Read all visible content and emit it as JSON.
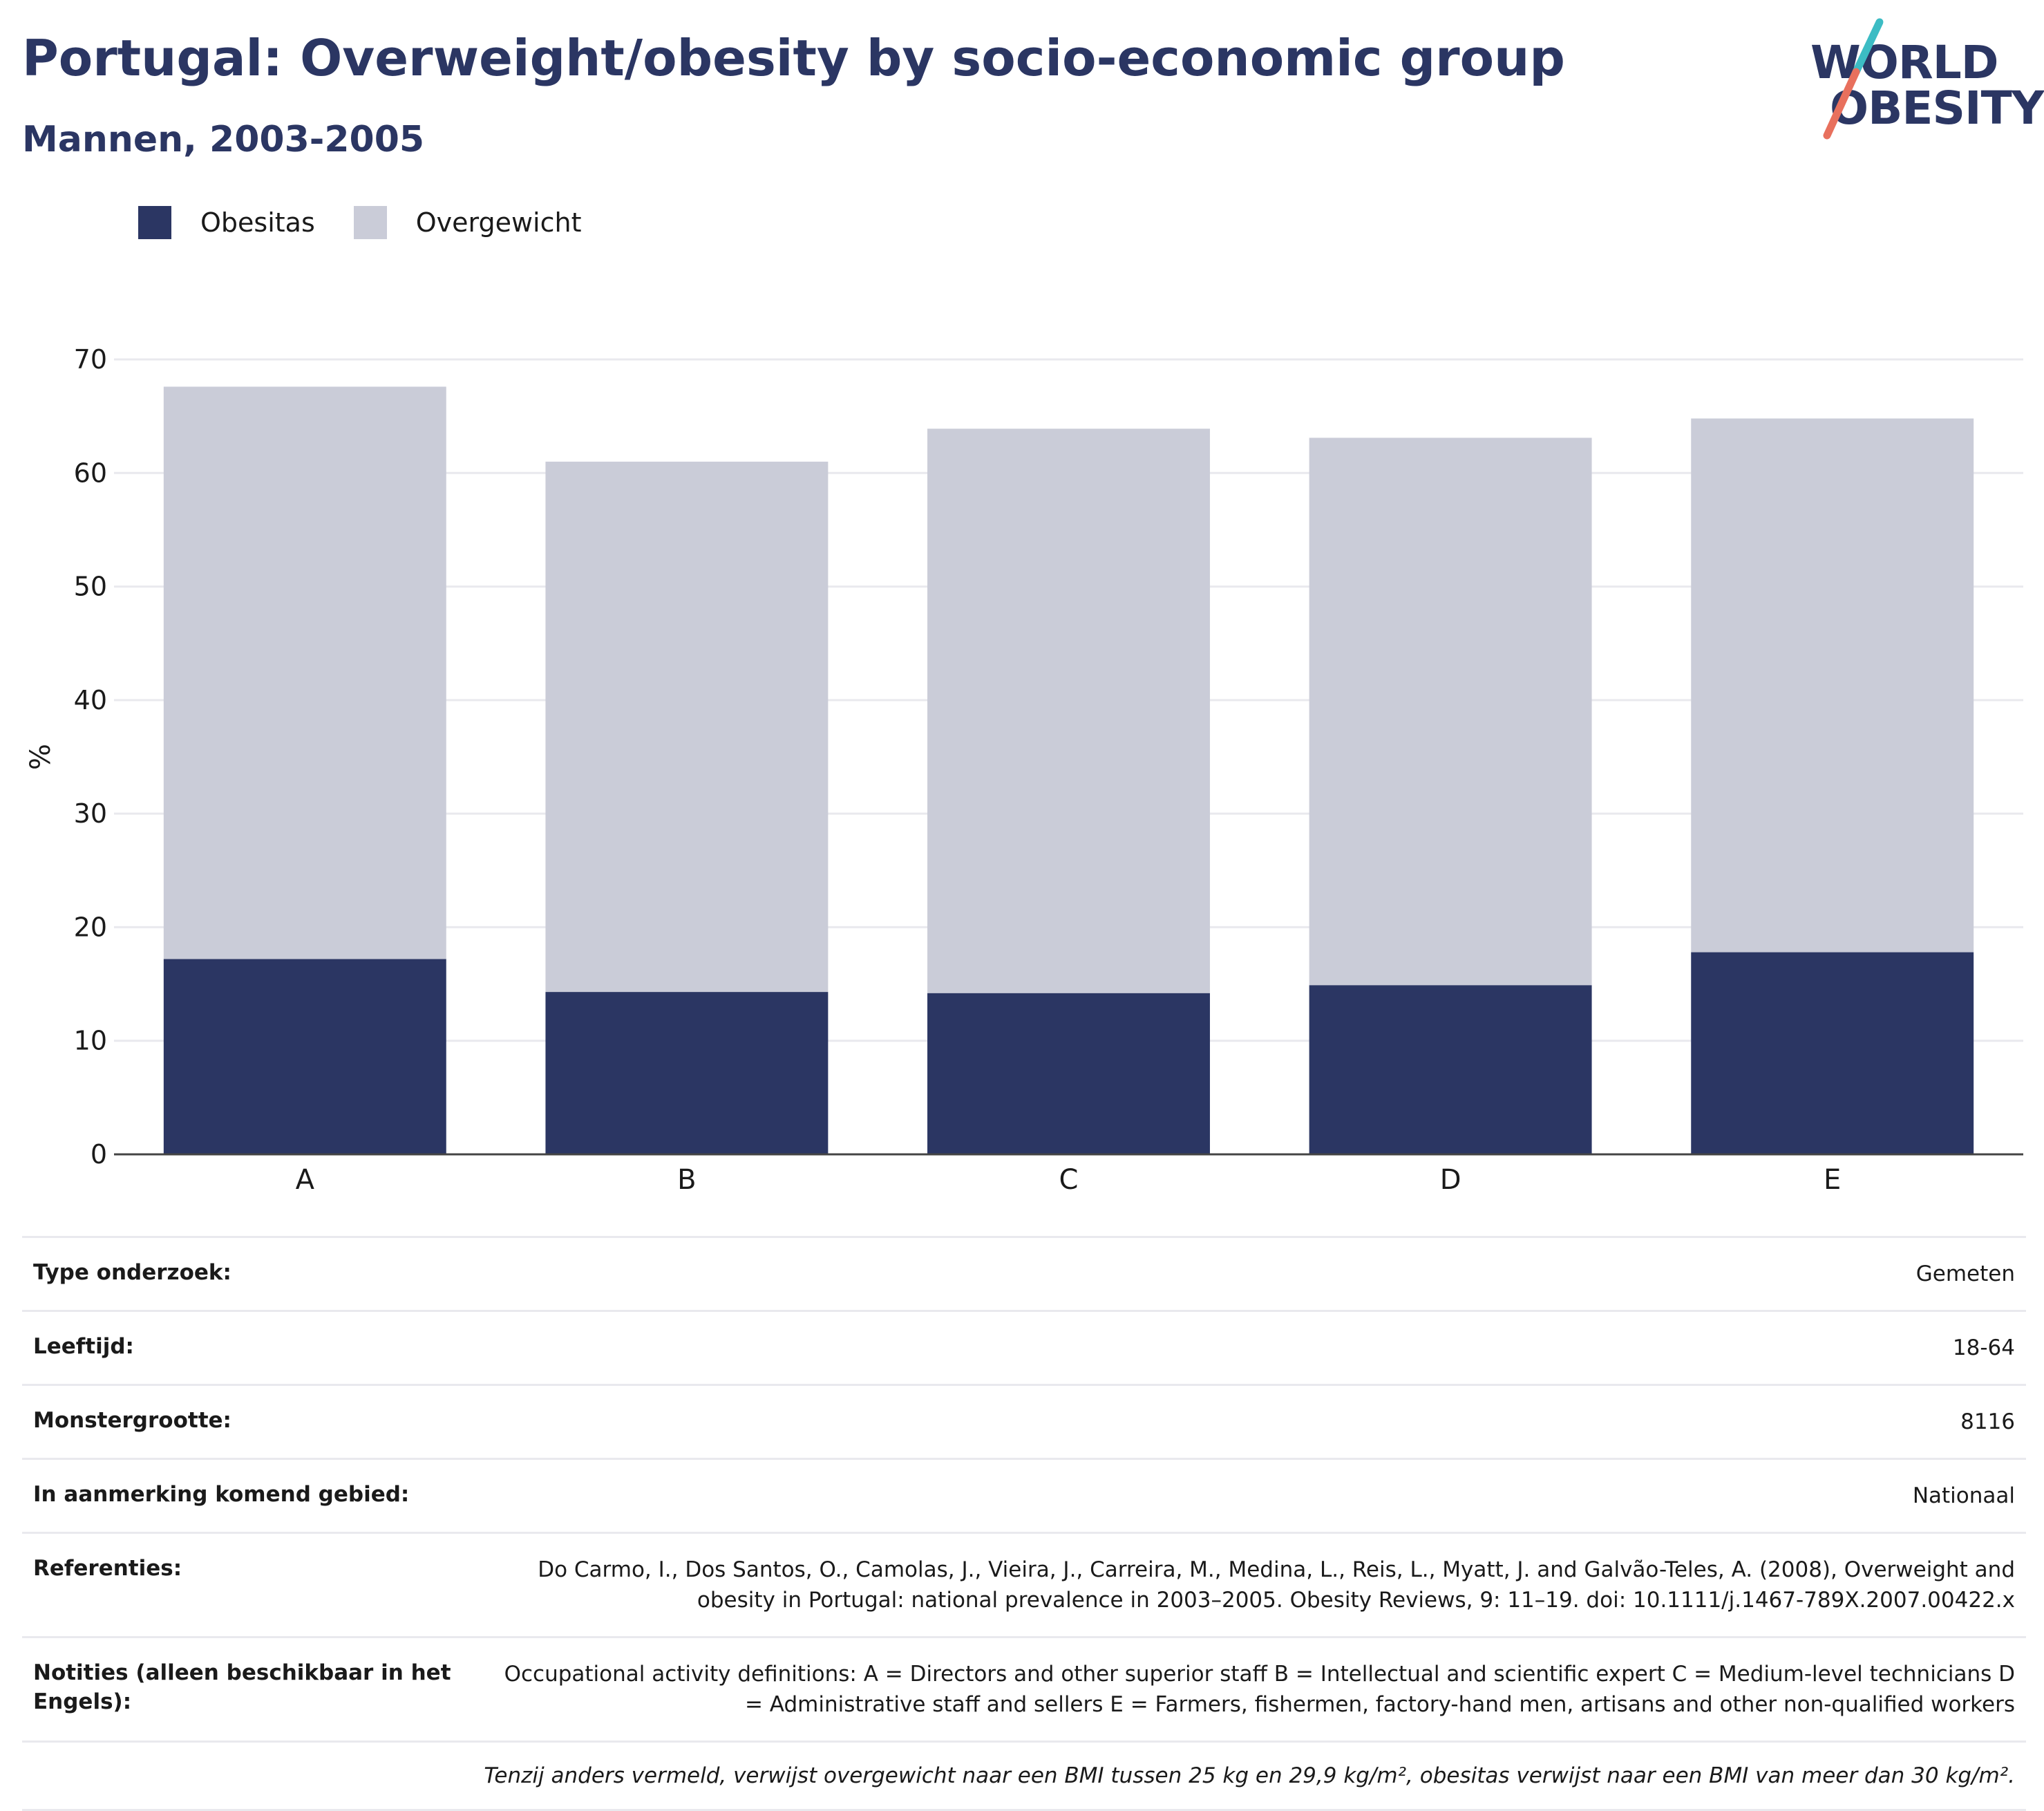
{
  "header": {
    "title": "Portugal: Overweight/obesity by socio-economic group",
    "subtitle": "Mannen, 2003-2005"
  },
  "logo": {
    "line1": "WORLD",
    "line2": "OBESITY",
    "slash_colors": [
      "#3cbcc4",
      "#e8705d"
    ]
  },
  "chart_data": {
    "type": "bar",
    "stacked": true,
    "categories": [
      "A",
      "B",
      "C",
      "D",
      "E"
    ],
    "series": [
      {
        "name": "Obesitas",
        "color": "#2b3663",
        "values": [
          17.2,
          14.3,
          14.2,
          14.9,
          17.8
        ]
      },
      {
        "name": "Overgewicht",
        "color": "#caccd8",
        "values": [
          50.4,
          46.7,
          49.7,
          48.2,
          47.0
        ]
      }
    ],
    "ylabel": "%",
    "ylim": [
      0,
      70
    ],
    "yticks": [
      0,
      10,
      20,
      30,
      40,
      50,
      60,
      70
    ],
    "grid": true,
    "legend": "top-left"
  },
  "info": [
    {
      "label": "Type onderzoek:",
      "value": "Gemeten"
    },
    {
      "label": "Leeftijd:",
      "value": "18-64"
    },
    {
      "label": "Monstergrootte:",
      "value": "8116"
    },
    {
      "label": "In aanmerking komend gebied:",
      "value": "Nationaal"
    },
    {
      "label": "Referenties:",
      "value": "Do Carmo, I., Dos Santos, O., Camolas, J., Vieira, J., Carreira, M., Medina, L., Reis, L., Myatt, J. and Galvão-Teles, A. (2008), Overweight and obesity in Portugal: national prevalence in 2003–2005. Obesity Reviews, 9: 11–19. doi: 10.1111/j.1467-789X.2007.00422.x"
    },
    {
      "label": "Notities (alleen beschikbaar in het Engels):",
      "value": "Occupational activity definitions: A = Directors and other superior staff B = Intellectual and scientific expert C = Medium-level technicians D = Administrative staff and sellers E = Farmers, fishermen, factory-hand men, artisans and other non-qualified workers"
    }
  ],
  "footnote": "Tenzij anders vermeld, verwijst overgewicht naar een BMI tussen 25 kg en 29,9 kg/m², obesitas verwijst naar een BMI van meer dan 30 kg/m²."
}
